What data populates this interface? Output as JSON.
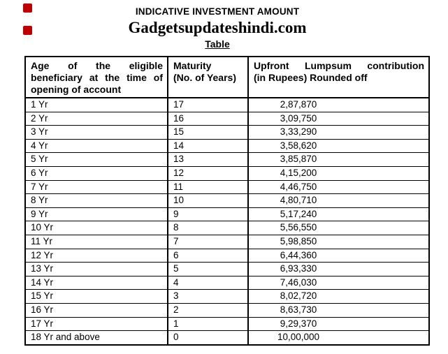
{
  "colors": {
    "background": "#ffffff",
    "text": "#000000",
    "border": "#000000",
    "marker_red": "#c00000"
  },
  "header": {
    "title": "INDICATIVE INVESTMENT AMOUNT",
    "site": "Gadgetsupdateshindi.com",
    "subtitle": "Table"
  },
  "table": {
    "columns": [
      {
        "key": "age",
        "header_lines": [
          "Age of the eligible",
          "beneficiary at the time of",
          "opening of account"
        ]
      },
      {
        "key": "maturity",
        "header_lines": [
          "Maturity",
          "(No. of Years)"
        ]
      },
      {
        "key": "amount",
        "header_lines": [
          "Upfront Lumpsum contribution",
          "(in Rupees) Rounded off"
        ]
      }
    ],
    "rows": [
      {
        "age": "1 Yr",
        "maturity": "17",
        "amount": "2,87,870"
      },
      {
        "age": "2 Yr",
        "maturity": "16",
        "amount": "3,09,750"
      },
      {
        "age": "3 Yr",
        "maturity": "15",
        "amount": "3,33,290"
      },
      {
        "age": "4 Yr",
        "maturity": "14",
        "amount": "3,58,620"
      },
      {
        "age": "5 Yr",
        "maturity": "13",
        "amount": "3,85,870"
      },
      {
        "age": "6 Yr",
        "maturity": "12",
        "amount": "4,15,200"
      },
      {
        "age": "7 Yr",
        "maturity": "11",
        "amount": "4,46,750"
      },
      {
        "age": "8 Yr",
        "maturity": "10",
        "amount": "4,80,710"
      },
      {
        "age": "9 Yr",
        "maturity": "9",
        "amount": "5,17,240"
      },
      {
        "age": "10 Yr",
        "maturity": "8",
        "amount": "5,56,550"
      },
      {
        "age": "11 Yr",
        "maturity": "7",
        "amount": "5,98,850"
      },
      {
        "age": "12 Yr",
        "maturity": "6",
        "amount": "6,44,360"
      },
      {
        "age": "13 Yr",
        "maturity": "5",
        "amount": "6,93,330"
      },
      {
        "age": "14 Yr",
        "maturity": "4",
        "amount": "7,46,030"
      },
      {
        "age": "15 Yr",
        "maturity": "3",
        "amount": "8,02,720"
      },
      {
        "age": "16 Yr",
        "maturity": "2",
        "amount": "8,63,730"
      },
      {
        "age": "17 Yr",
        "maturity": "1",
        "amount": "9,29,370"
      },
      {
        "age": "18 Yr and above",
        "maturity": "0",
        "amount": "10,00,000"
      }
    ]
  }
}
